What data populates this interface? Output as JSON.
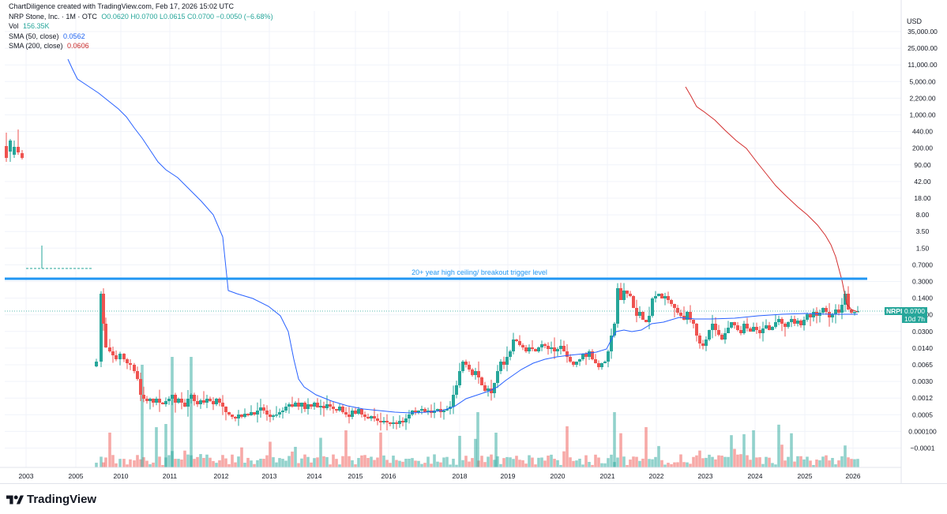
{
  "header": {
    "credit": "ChartDiligence created with TradingView.com, Feb 17, 2026 15:02 UTC",
    "symbol": "NRP Stone, Inc. · 1M · OTC",
    "ohlc": "O0.0620 H0.0700 L0.0615 C0.0700 −0.0050 (−6.68%)",
    "vol_label": "Vol",
    "vol_value": "156.35K",
    "sma50_label": "SMA (50, close)",
    "sma50_value": "0.0562",
    "sma200_label": "SMA (200, close)",
    "sma200_value": "0.0606"
  },
  "axis": {
    "currency": "USD",
    "y_ticks": [
      "35,000.00",
      "25,000.00",
      "11,000.00",
      "5,000.00",
      "2,200.00",
      "1,000.00",
      "440.00",
      "200.00",
      "90.00",
      "42.00",
      "18.00",
      "8.00",
      "3.50",
      "1.50",
      "0.7000",
      "0.3000",
      "0.1400",
      "0.0600",
      "0.0300",
      "0.0140",
      "0.0065",
      "0.0030",
      "0.0012",
      "0.0005",
      "0.000100",
      "−0.0001"
    ],
    "x_ticks": [
      "2003",
      "2005",
      "2010",
      "2011",
      "2012",
      "2013",
      "2014",
      "2015",
      "2016",
      "2018",
      "2019",
      "2020",
      "2021",
      "2022",
      "2023",
      "2024",
      "2025",
      "2026"
    ]
  },
  "last_price": {
    "ticker": "NRPI",
    "price": "0.0700",
    "countdown": "10d 7h"
  },
  "annotation": {
    "text": "20+ year high ceiling/ breakout trigger level",
    "price": 0.3
  },
  "footer": {
    "brand": "TradingView"
  },
  "colors": {
    "up": "#26a69a",
    "down": "#ef5350",
    "sma50": "#2962ff",
    "sma200": "#d32f2f",
    "annotation": "#2196f3"
  },
  "chart_data": {
    "type": "candlestick",
    "scale": "log",
    "interval": "1M",
    "series": [
      {
        "name": "SMA (50, close)",
        "last": 0.0562
      },
      {
        "name": "SMA (200, close)",
        "last": 0.0606
      }
    ],
    "horizontal_levels": [
      {
        "label": "20+ year high ceiling/ breakout trigger level",
        "price": 0.3
      }
    ],
    "last": {
      "open": 0.062,
      "high": 0.07,
      "low": 0.0615,
      "close": 0.07,
      "change": -0.005,
      "change_pct": -6.68,
      "volume": "156.35K"
    }
  }
}
